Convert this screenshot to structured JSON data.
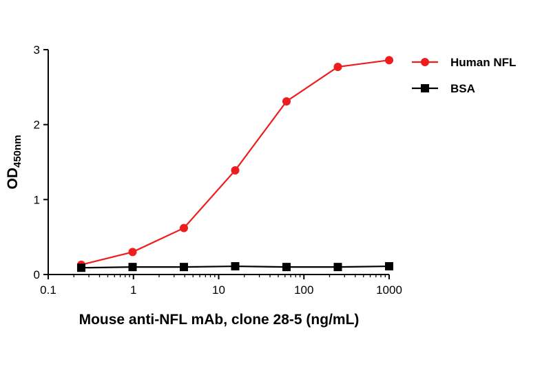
{
  "chart_data": {
    "type": "line",
    "x_scale": "log",
    "xlim": [
      0.1,
      1000
    ],
    "ylim": [
      0,
      3
    ],
    "x_ticks": [
      0.1,
      1,
      10,
      100,
      1000
    ],
    "x_tick_labels": [
      "0.1",
      "1",
      "10",
      "100",
      "1000"
    ],
    "y_ticks": [
      0,
      1,
      2,
      3
    ],
    "y_tick_labels": [
      "0",
      "1",
      "2",
      "3"
    ],
    "xlabel": "Mouse anti-NFL mAb, clone 28-5 (ng/mL)",
    "ylabel_main": "OD",
    "ylabel_sub": "450nm",
    "grid": false,
    "legend_position": "top-right",
    "x": [
      0.244,
      0.977,
      3.906,
      15.625,
      62.5,
      250,
      1000
    ],
    "series": [
      {
        "name": "Human NFL",
        "color": "#ee1c1c",
        "marker": "circle",
        "values": [
          0.13,
          0.3,
          0.62,
          1.39,
          2.31,
          2.77,
          2.86
        ]
      },
      {
        "name": "BSA",
        "color": "#000000",
        "marker": "square",
        "values": [
          0.09,
          0.1,
          0.1,
          0.11,
          0.1,
          0.1,
          0.11
        ]
      }
    ]
  }
}
